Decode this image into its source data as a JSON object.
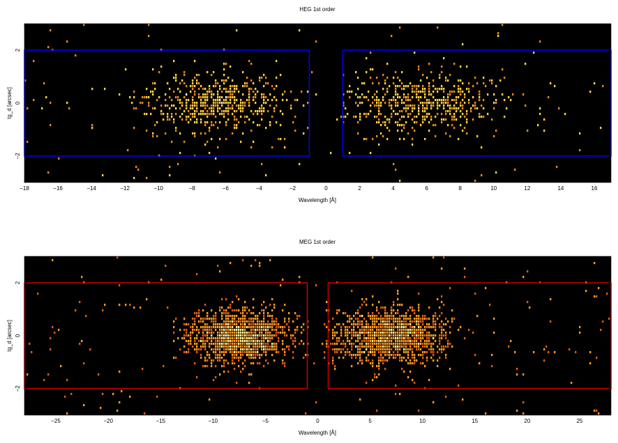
{
  "chart_data": [
    {
      "type": "heatmap",
      "title": "HEG 1st order",
      "xlabel": "Wavelength [Å]",
      "ylabel": "tg_d [arcsec]",
      "xlim": [
        -18,
        17
      ],
      "ylim": [
        -3,
        3
      ],
      "xticks": [
        -18,
        -16,
        -14,
        -12,
        -10,
        -8,
        -6,
        -4,
        -2,
        0,
        2,
        4,
        6,
        8,
        10,
        12,
        14,
        16
      ],
      "yticks": [
        -2,
        0,
        2
      ],
      "background": "#000000",
      "colormap": [
        "#7a2000",
        "#e8881a",
        "#ffd040",
        "#fffbe0"
      ],
      "regions": [
        {
          "x": [
            -18,
            -1
          ],
          "y": [
            -2,
            2
          ],
          "color": "#0000ff"
        },
        {
          "x": [
            1,
            17
          ],
          "y": [
            -2,
            2
          ],
          "color": "#0000ff"
        }
      ],
      "clusters": [
        {
          "x_range": [
            -12.5,
            -1
          ],
          "peak_x": -6.5,
          "y_sigma": 0.55
        },
        {
          "x_range": [
            1.5,
            14
          ],
          "peak_x": 5.5,
          "y_sigma": 0.55
        }
      ]
    },
    {
      "type": "heatmap",
      "title": "MEG 1st order",
      "xlabel": "Wavelength [Å]",
      "ylabel": "tg_d [arcsec]",
      "xlim": [
        -28,
        28
      ],
      "ylim": [
        -3,
        3
      ],
      "xticks": [
        -25,
        -20,
        -15,
        -10,
        -5,
        0,
        5,
        10,
        15,
        20,
        25
      ],
      "yticks": [
        -2,
        0,
        2
      ],
      "background": "#000000",
      "colormap": [
        "#8a1a00",
        "#e05a10",
        "#ff9a20",
        "#fff2a0"
      ],
      "regions": [
        {
          "x": [
            -28,
            -1
          ],
          "y": [
            -2,
            2
          ],
          "color": "#cc0000"
        },
        {
          "x": [
            1,
            28
          ],
          "y": [
            -2,
            2
          ],
          "color": "#cc0000"
        }
      ],
      "clusters": [
        {
          "x_range": [
            -14,
            -1
          ],
          "peak_x": -7.5,
          "y_sigma": 0.5
        },
        {
          "x_range": [
            1,
            15
          ],
          "peak_x": 7,
          "y_sigma": 0.5
        }
      ]
    }
  ]
}
